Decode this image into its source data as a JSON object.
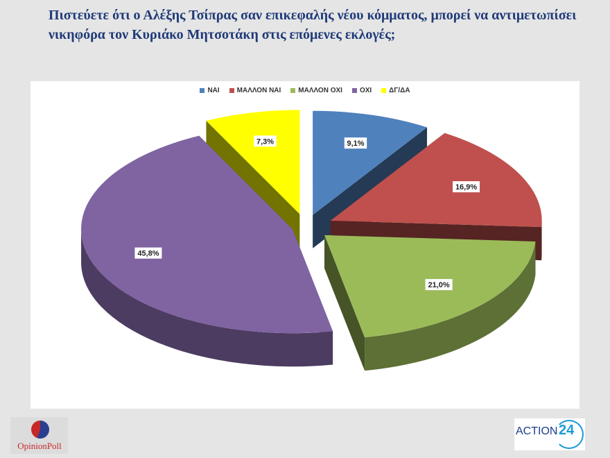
{
  "title": "Πιστεύετε ότι ο Αλέξης Τσίπρας σαν επικεφαλής νέου κόμματος, μπορεί να αντιμετωπίσει νικηφόρα τον Κυριάκο Μητσοτάκη στις επόμενες εκλογές;",
  "chart_data": {
    "type": "pie",
    "style": "3d-exploded",
    "legend_position": "top",
    "categories": [
      "ΝΑΙ",
      "ΜΑΛΛΟΝ ΝΑΙ",
      "ΜΑΛΛΟΝ ΟΧΙ",
      "ΟΧΙ",
      "ΔΓ/ΔΑ"
    ],
    "values": [
      9.1,
      16.9,
      21.0,
      45.8,
      7.3
    ],
    "labels": [
      "9,1%",
      "16,9%",
      "21,0%",
      "45,8%",
      "7,3%"
    ],
    "colors": [
      "#4f81bd",
      "#c0504d",
      "#9bbb59",
      "#8064a2",
      "#ffff00"
    ]
  },
  "logos": {
    "left": "OpinionPoll",
    "right_text": "ACTION",
    "right_num": "24"
  }
}
